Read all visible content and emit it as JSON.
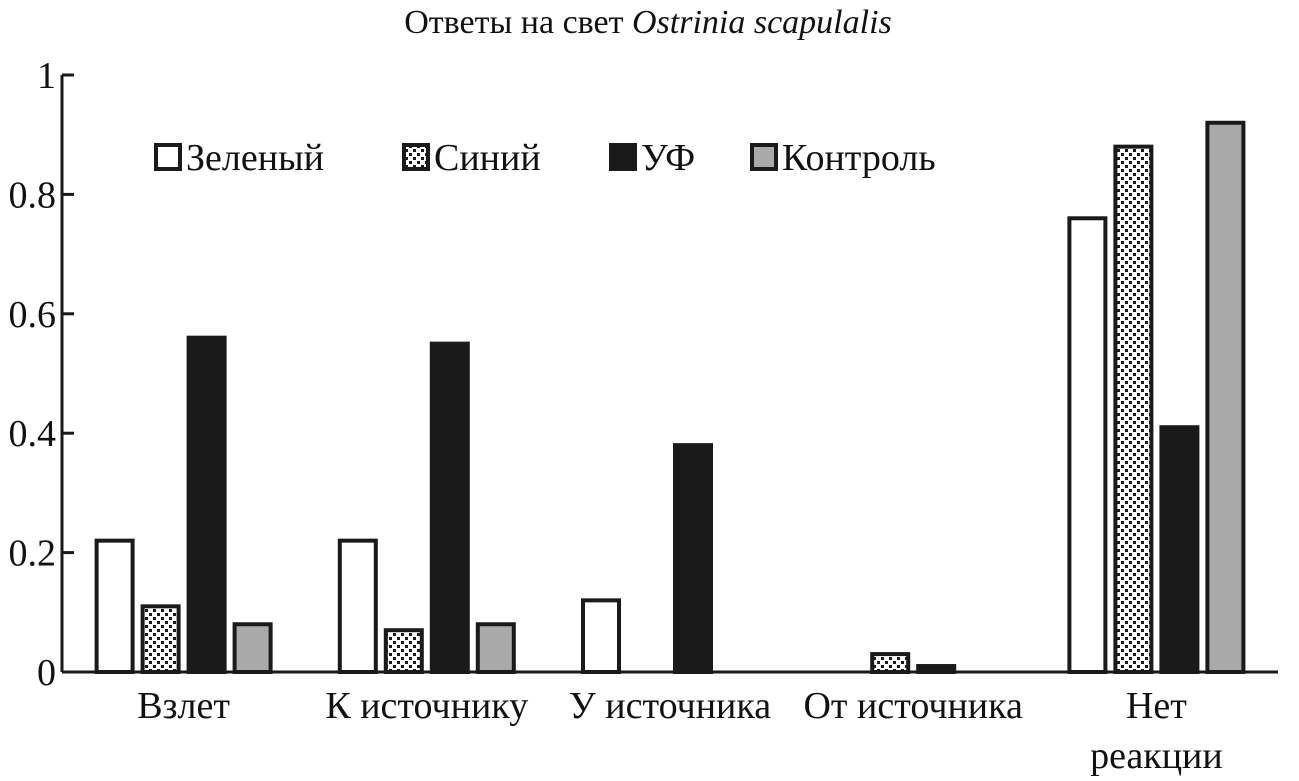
{
  "chart_data": {
    "type": "bar",
    "title": "Ответы на свет",
    "title_italic": "Ostrinia scapulalis",
    "xlabel": "",
    "ylabel": "",
    "ylim": [
      0,
      1
    ],
    "yticks": [
      0,
      0.2,
      0.4,
      0.6,
      0.8,
      1
    ],
    "ytick_labels": [
      "0",
      "0.2",
      "0.4",
      "0.6",
      "0.8",
      "1"
    ],
    "categories": [
      [
        "Взлет"
      ],
      [
        "К источнику"
      ],
      [
        "У источника"
      ],
      [
        "От источника"
      ],
      [
        "Нет",
        "реакции"
      ]
    ],
    "legend_position": "top-left",
    "series": [
      {
        "name": "Зеленый",
        "style": "open",
        "values": [
          0.22,
          0.22,
          0.12,
          0,
          0.76
        ]
      },
      {
        "name": "Синий",
        "style": "dotted",
        "values": [
          0.11,
          0.07,
          0,
          0.03,
          0.88
        ]
      },
      {
        "name": "УФ",
        "style": "black",
        "values": [
          0.56,
          0.55,
          0.38,
          0.01,
          0.41
        ]
      },
      {
        "name": "Контроль",
        "style": "gray",
        "values": [
          0.08,
          0.08,
          0,
          0,
          0.92
        ]
      }
    ],
    "colors": {
      "black": "#1a1a1a",
      "gray": "#a9a9a9",
      "open": "#ffffff",
      "outline": "#1a1a1a"
    }
  }
}
